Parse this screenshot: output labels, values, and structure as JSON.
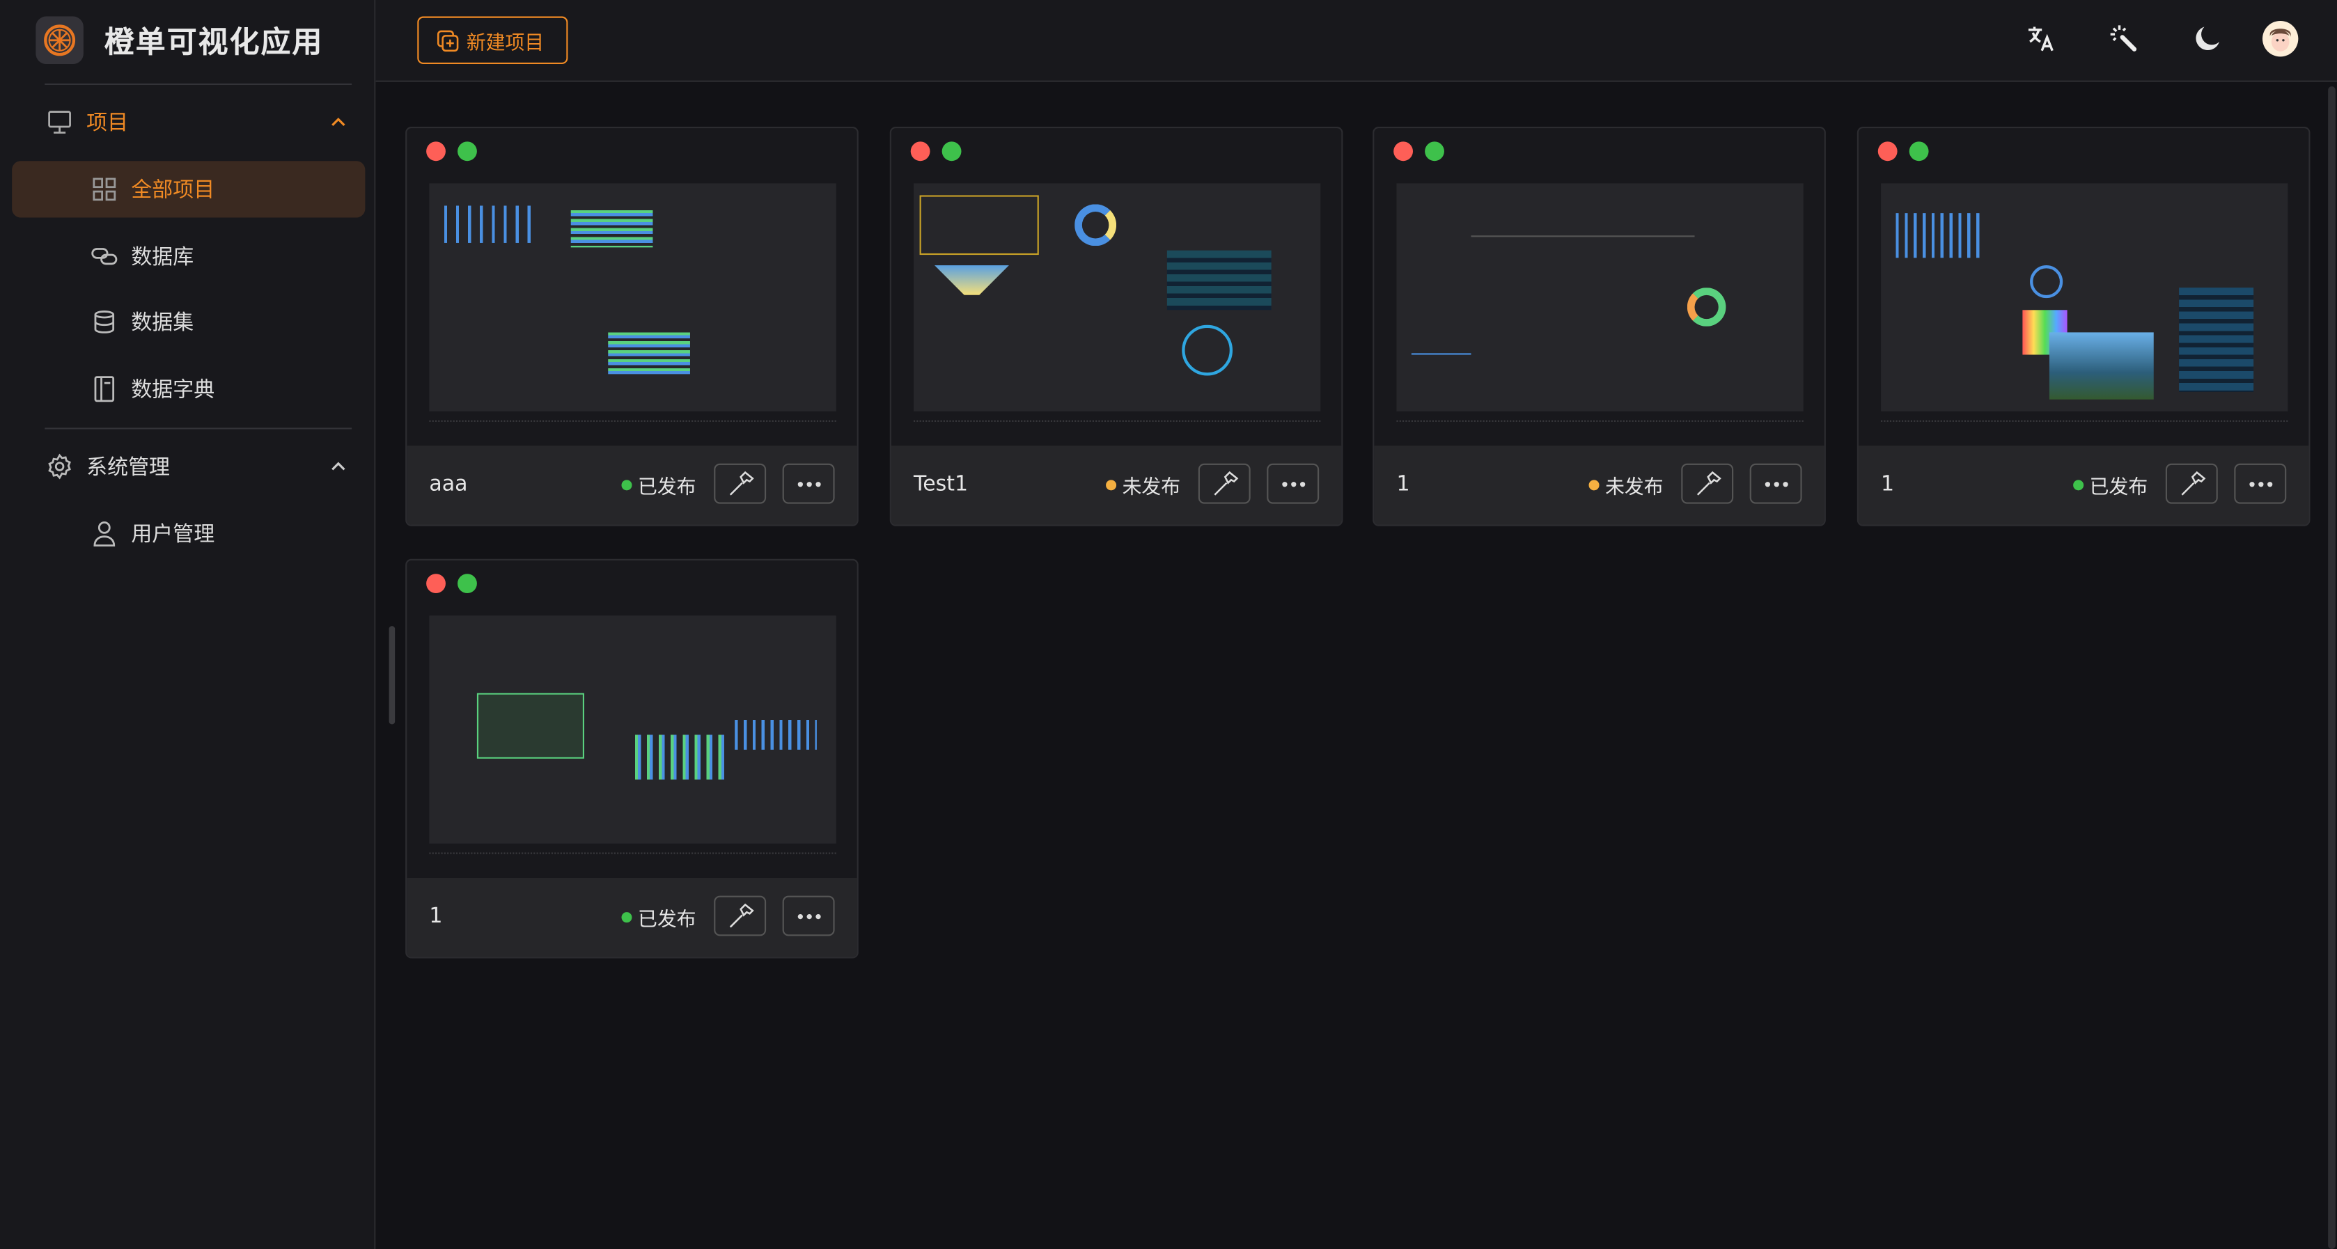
{
  "app": {
    "title": "橙单可视化应用",
    "logo_icon": "orange-slice-icon",
    "accent": "#f08a24"
  },
  "sidebar": {
    "groups": [
      {
        "label": "项目",
        "icon": "monitor-icon",
        "expanded": true,
        "items": [
          {
            "label": "全部项目",
            "icon": "grid-icon",
            "active": true
          },
          {
            "label": "数据库",
            "icon": "link-icon"
          },
          {
            "label": "数据集",
            "icon": "database-icon"
          },
          {
            "label": "数据字典",
            "icon": "book-icon"
          }
        ]
      },
      {
        "label": "系统管理",
        "icon": "gear-icon",
        "expanded": true,
        "items": [
          {
            "label": "用户管理",
            "icon": "user-icon"
          }
        ]
      }
    ]
  },
  "header": {
    "new_project": "新建项目",
    "icons": [
      "translate-icon",
      "magic-wand-icon",
      "moon-icon",
      "avatar"
    ]
  },
  "projects": [
    {
      "name": "aaa",
      "status": "已发布",
      "status_color": "#3ec14b"
    },
    {
      "name": "Test1",
      "status": "未发布",
      "status_color": "#f5b041"
    },
    {
      "name": "1",
      "status": "未发布",
      "status_color": "#f5b041"
    },
    {
      "name": "1",
      "status": "已发布",
      "status_color": "#3ec14b"
    },
    {
      "name": "1",
      "status": "已发布",
      "status_color": "#3ec14b"
    }
  ]
}
